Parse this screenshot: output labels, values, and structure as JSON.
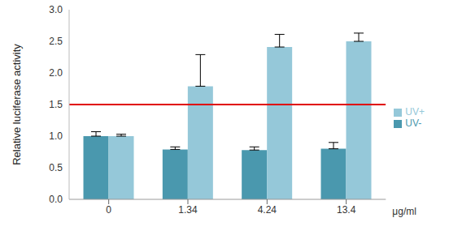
{
  "chart_data": {
    "type": "bar",
    "categories": [
      "0",
      "1.34",
      "4.24",
      "13.4"
    ],
    "series": [
      {
        "name": "UV-",
        "color": "#4a98ae",
        "values": [
          1.0,
          0.79,
          0.78,
          0.8
        ],
        "errors": [
          0.07,
          0.04,
          0.05,
          0.1
        ]
      },
      {
        "name": "UV+",
        "color": "#95c8d9",
        "values": [
          1.0,
          1.79,
          2.41,
          2.5
        ],
        "errors": [
          0.03,
          0.5,
          0.2,
          0.13
        ]
      }
    ],
    "ylabel": "Relative luciferase activity",
    "xlabel": "μg/ml",
    "ylim": [
      0,
      3
    ],
    "yticks": [
      {
        "value": 0,
        "label": "0.0"
      },
      0.5,
      {
        "value": 1,
        "label": "1.0"
      },
      1.5,
      {
        "value": 2,
        "label": "2.0"
      },
      2.5,
      {
        "value": 3,
        "label": "3.0"
      }
    ],
    "grid": false,
    "legend": "right",
    "threshold": {
      "value": 1.5,
      "color": "#e00000"
    }
  }
}
